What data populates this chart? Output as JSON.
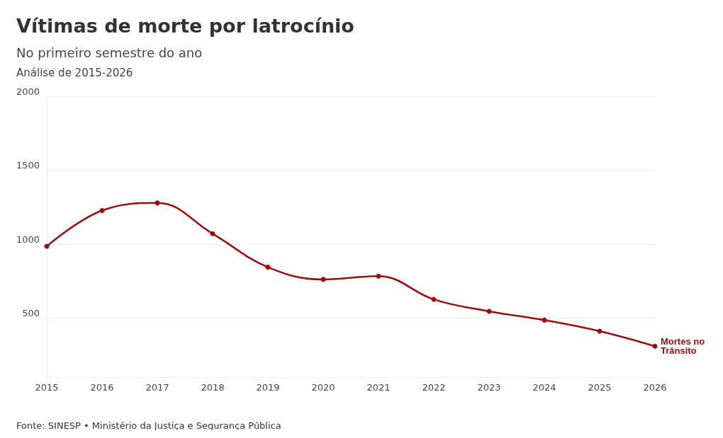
{
  "chart_data": {
    "type": "line",
    "title": "Vítimas de morte por latrocínio",
    "subtitle": "No primeiro semestre do ano",
    "annotations": [
      "Análise de 2015-2026",
      "Fonte: SINESP • Ministério da Justiça e Segurança Pública"
    ],
    "categories": [
      "2015",
      "2016",
      "2017",
      "2018",
      "2019",
      "2020",
      "2021",
      "2022",
      "2023",
      "2024",
      "2025",
      "2026"
    ],
    "series": [
      {
        "name": "Mortes no Trânsito",
        "color": "#9b0d0d",
        "values": [
          985,
          1227,
          1278,
          1070,
          844,
          761,
          783,
          626,
          545,
          486,
          411,
          309
        ]
      }
    ],
    "ylim": [
      100,
      2000
    ],
    "yticks": [
      500,
      1000,
      1500,
      2000
    ],
    "grid": "y",
    "marker": "circle",
    "line_style": "solid",
    "legend": false
  }
}
